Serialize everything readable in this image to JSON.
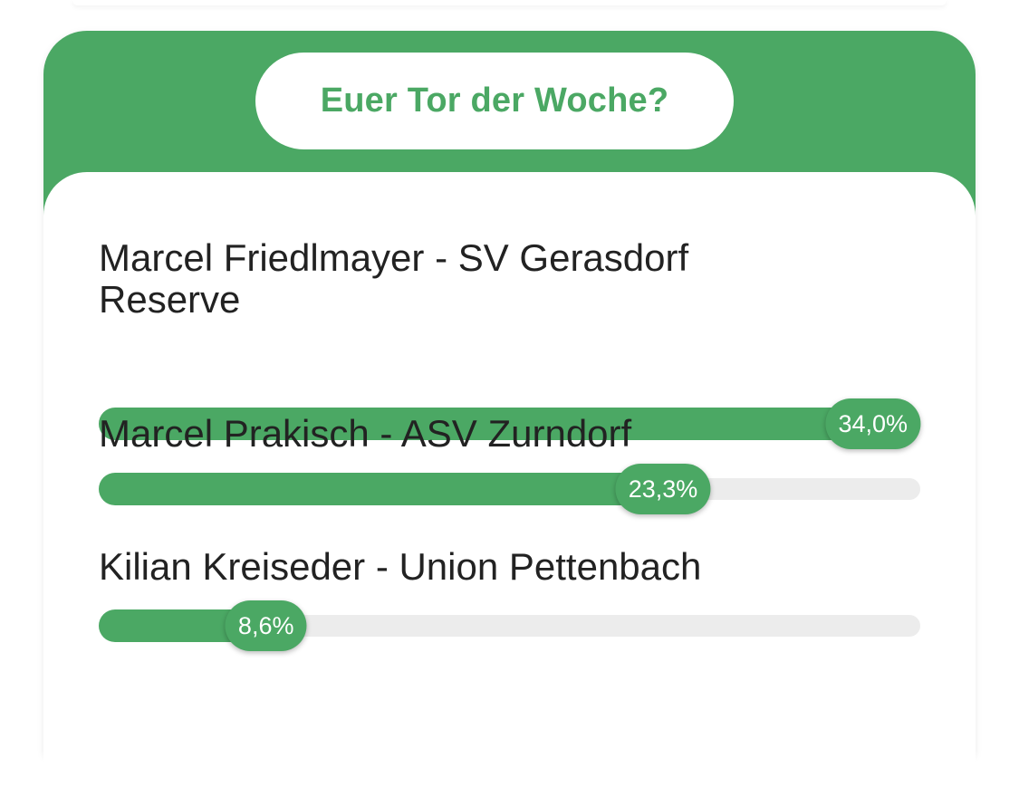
{
  "poll": {
    "title": "Euer Tor der Woche?",
    "accent_color": "#4ba864",
    "track_color": "#ececec",
    "options": [
      {
        "label": "Marcel Friedlmayer - SV Gerasdorf Reserve",
        "percent_text": "34,0%",
        "fill_fraction": 1.0
      },
      {
        "label": "Marcel Prakisch - ASV Zurndorf",
        "percent_text": "23,3%",
        "fill_fraction": 0.685
      },
      {
        "label": "Kilian Kreiseder - Union Pettenbach",
        "percent_text": "8,6%",
        "fill_fraction": 0.253
      }
    ]
  }
}
